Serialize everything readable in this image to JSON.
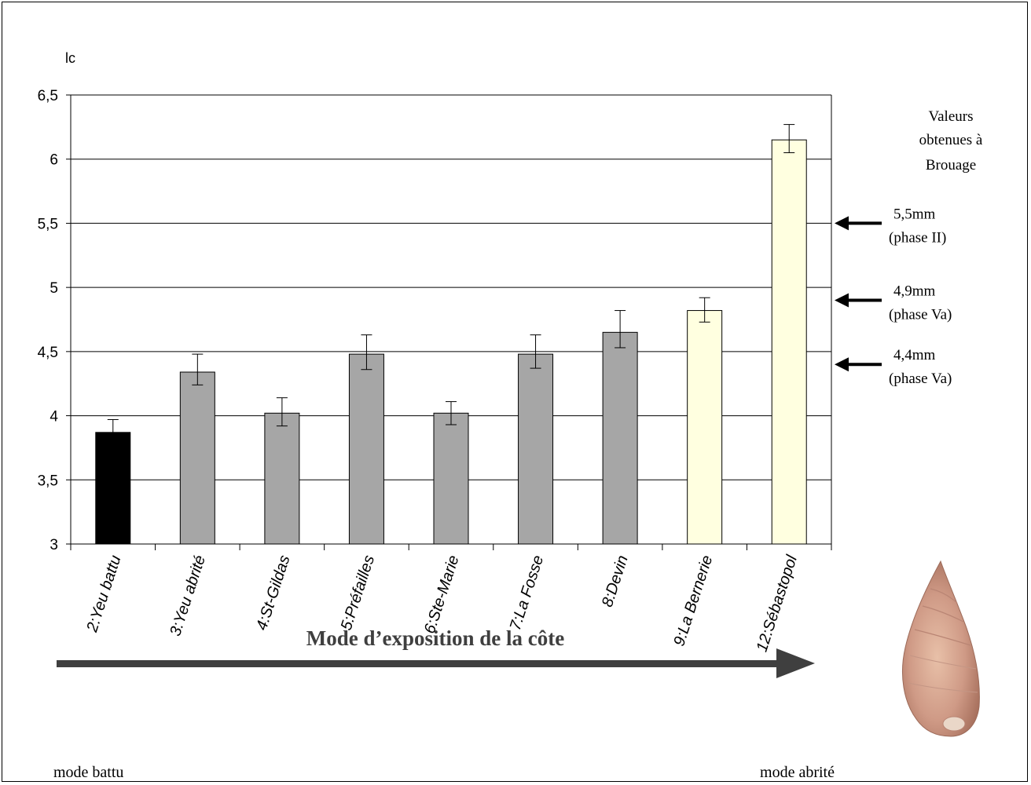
{
  "chart_data": {
    "type": "bar",
    "ylabel": "lc",
    "ylim": [
      3,
      6.5
    ],
    "yticks": [
      "3",
      "3,5",
      "4",
      "4,5",
      "5",
      "5,5",
      "6",
      "6,5"
    ],
    "ytick_values": [
      3,
      3.5,
      4,
      4.5,
      5,
      5.5,
      6,
      6.5
    ],
    "grid": true,
    "categories": [
      "2:Yeu battu",
      "3:Yeu abrité",
      "4:St-Gildas",
      "5:Préfailles",
      "6:Ste-Marie",
      "7:La Fosse",
      "8:Devin",
      "9:La Bernerie",
      "12:Sébastopol"
    ],
    "values": [
      3.87,
      4.34,
      4.02,
      4.48,
      4.02,
      4.48,
      4.65,
      4.82,
      6.15
    ],
    "error_low": [
      3.78,
      4.24,
      3.92,
      4.36,
      3.93,
      4.37,
      4.53,
      4.73,
      6.05
    ],
    "error_high": [
      3.97,
      4.48,
      4.14,
      4.63,
      4.11,
      4.63,
      4.82,
      4.92,
      6.27
    ],
    "bar_colors": [
      "#000000",
      "#a6a6a6",
      "#a6a6a6",
      "#a6a6a6",
      "#a6a6a6",
      "#a6a6a6",
      "#a6a6a6",
      "#ffffe0",
      "#ffffe0"
    ],
    "reference_title": [
      "Valeurs",
      "obtenues à",
      "Brouage"
    ],
    "reference_marks": [
      {
        "value": 5.5,
        "label": "5,5mm",
        "sublabel": "(phase II)"
      },
      {
        "value": 4.9,
        "label": "4,9mm",
        "sublabel": "(phase Va)"
      },
      {
        "value": 4.4,
        "label": "4,4mm",
        "sublabel": "(phase Va)"
      }
    ],
    "axis_arrow": {
      "title": "Mode d’exposition de la côte",
      "left_label": "mode battu",
      "right_label": "mode abrité"
    }
  },
  "colors": {
    "grid": "#000000",
    "arrow": "#3f3f3f",
    "error_bar": "#000000"
  },
  "image": {
    "icon": "shell-image"
  }
}
